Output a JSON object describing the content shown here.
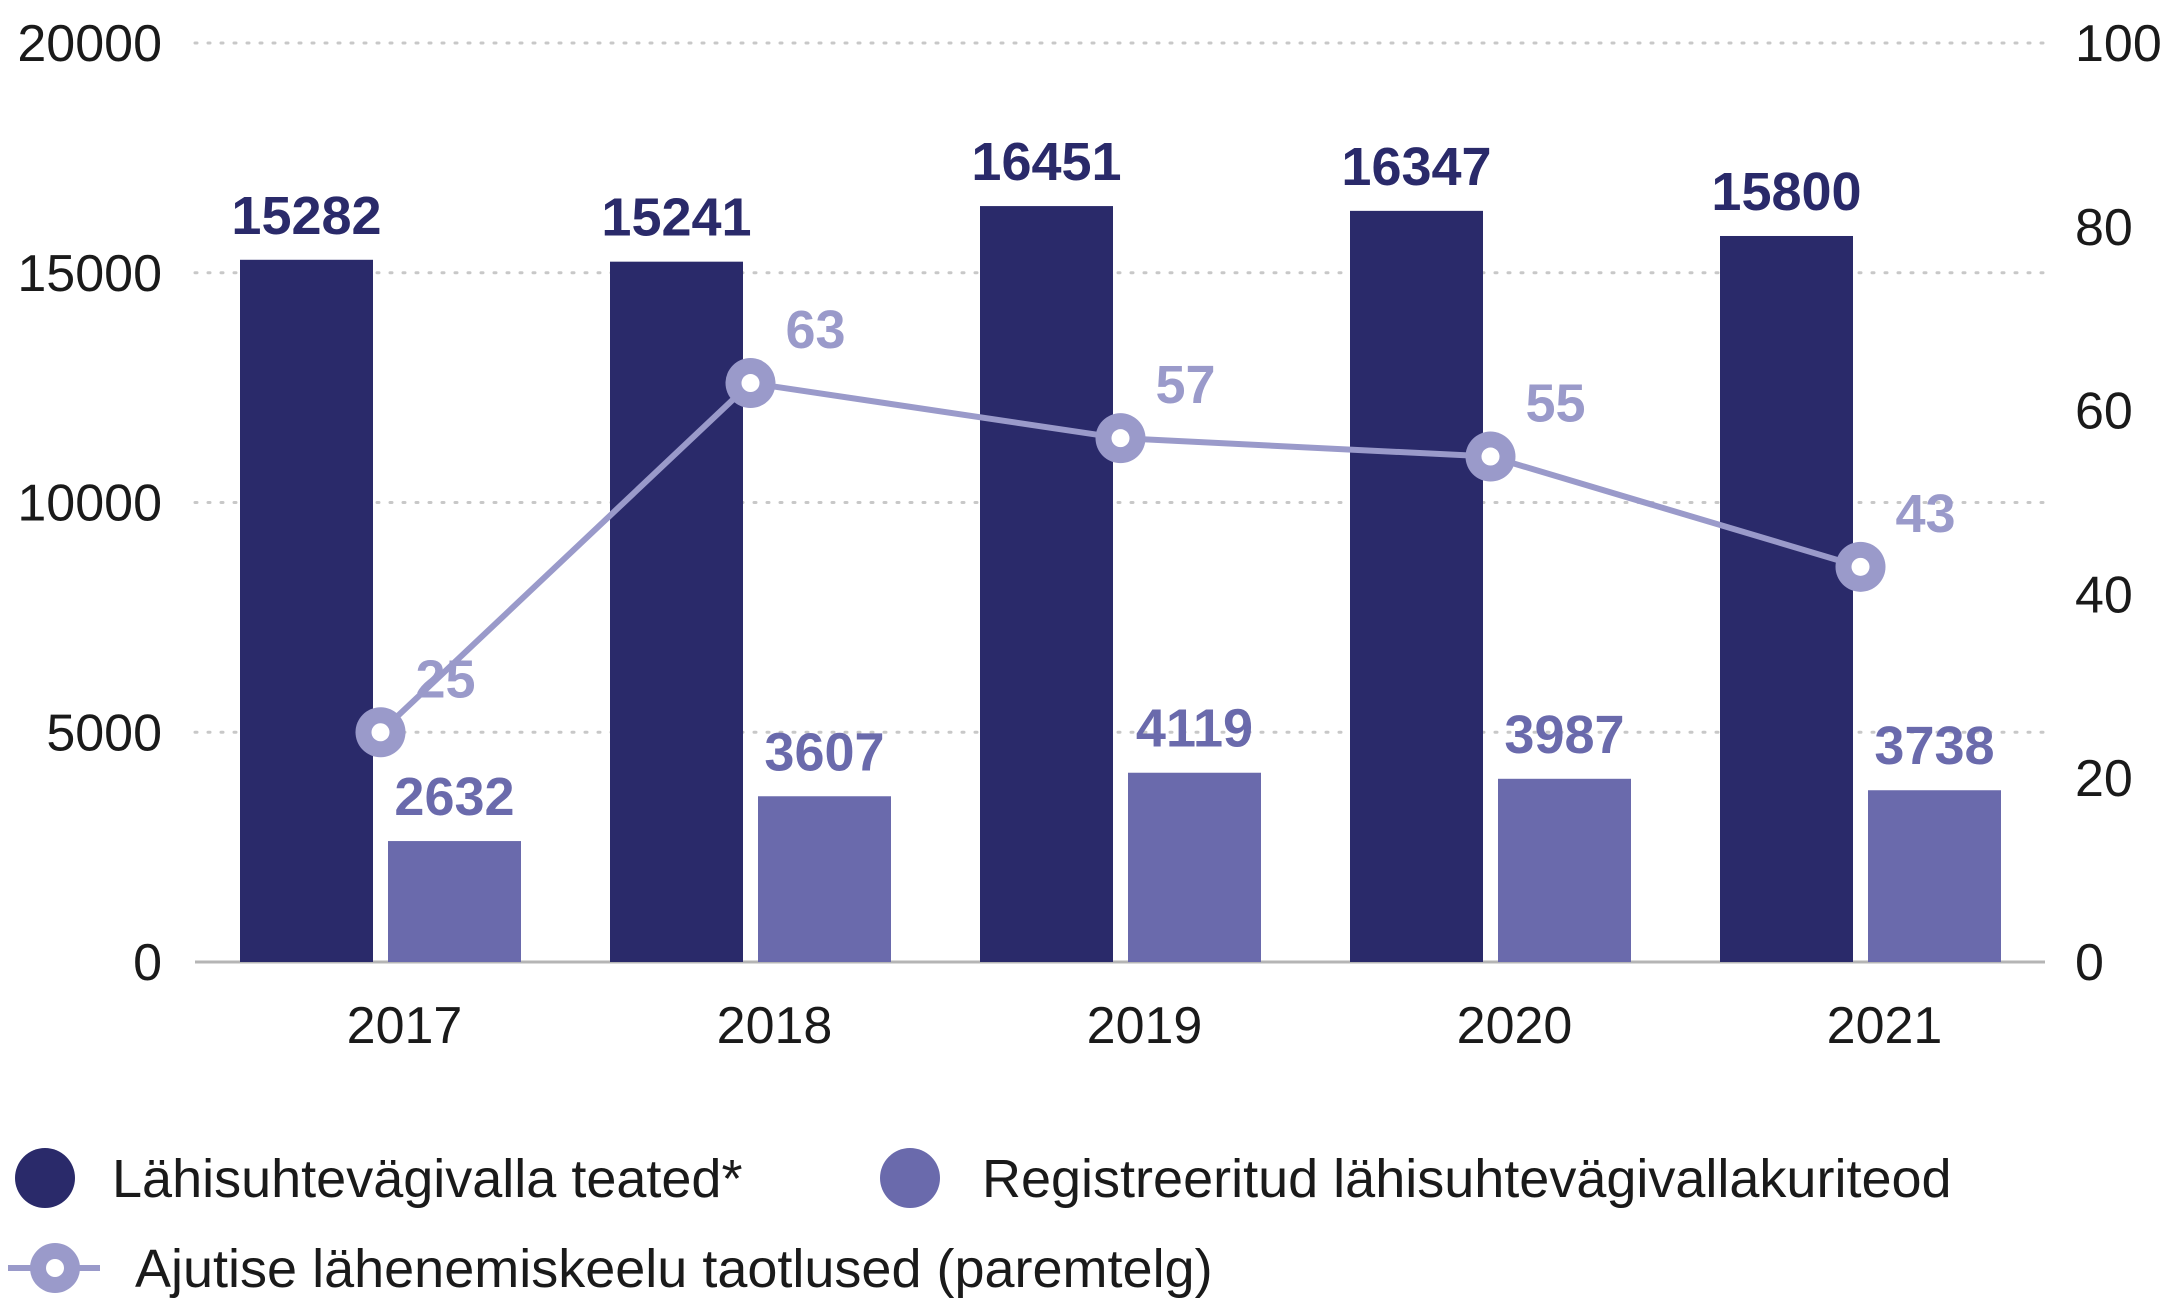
{
  "chart_data": {
    "type": "bar",
    "categories": [
      "2017",
      "2018",
      "2019",
      "2020",
      "2021"
    ],
    "series": [
      {
        "name": "Lähisuhtevägivalla teated*",
        "type": "bar",
        "axis": "left",
        "color": "#2a2a6a",
        "values": [
          15282,
          15241,
          16451,
          16347,
          15800
        ]
      },
      {
        "name": "Registreeritud lähisuhtevägivallakuriteod",
        "type": "bar",
        "axis": "left",
        "color": "#6a6aac",
        "values": [
          2632,
          3607,
          4119,
          3987,
          3738
        ]
      },
      {
        "name": "Ajutise lähenemiskeelu taotlused (paremtelg)",
        "type": "line",
        "axis": "right",
        "color": "#9a9aca",
        "values": [
          25,
          63,
          57,
          55,
          43
        ]
      }
    ],
    "ylim_left": [
      0,
      20000
    ],
    "yticks_left": [
      0,
      5000,
      10000,
      15000,
      20000
    ],
    "ylim_right": [
      0,
      100
    ],
    "yticks_right": [
      0,
      20,
      40,
      60,
      80,
      100
    ],
    "grid": "dotted-horizontal",
    "legend_position": "bottom",
    "title": "",
    "xlabel": "",
    "ylabel": ""
  }
}
